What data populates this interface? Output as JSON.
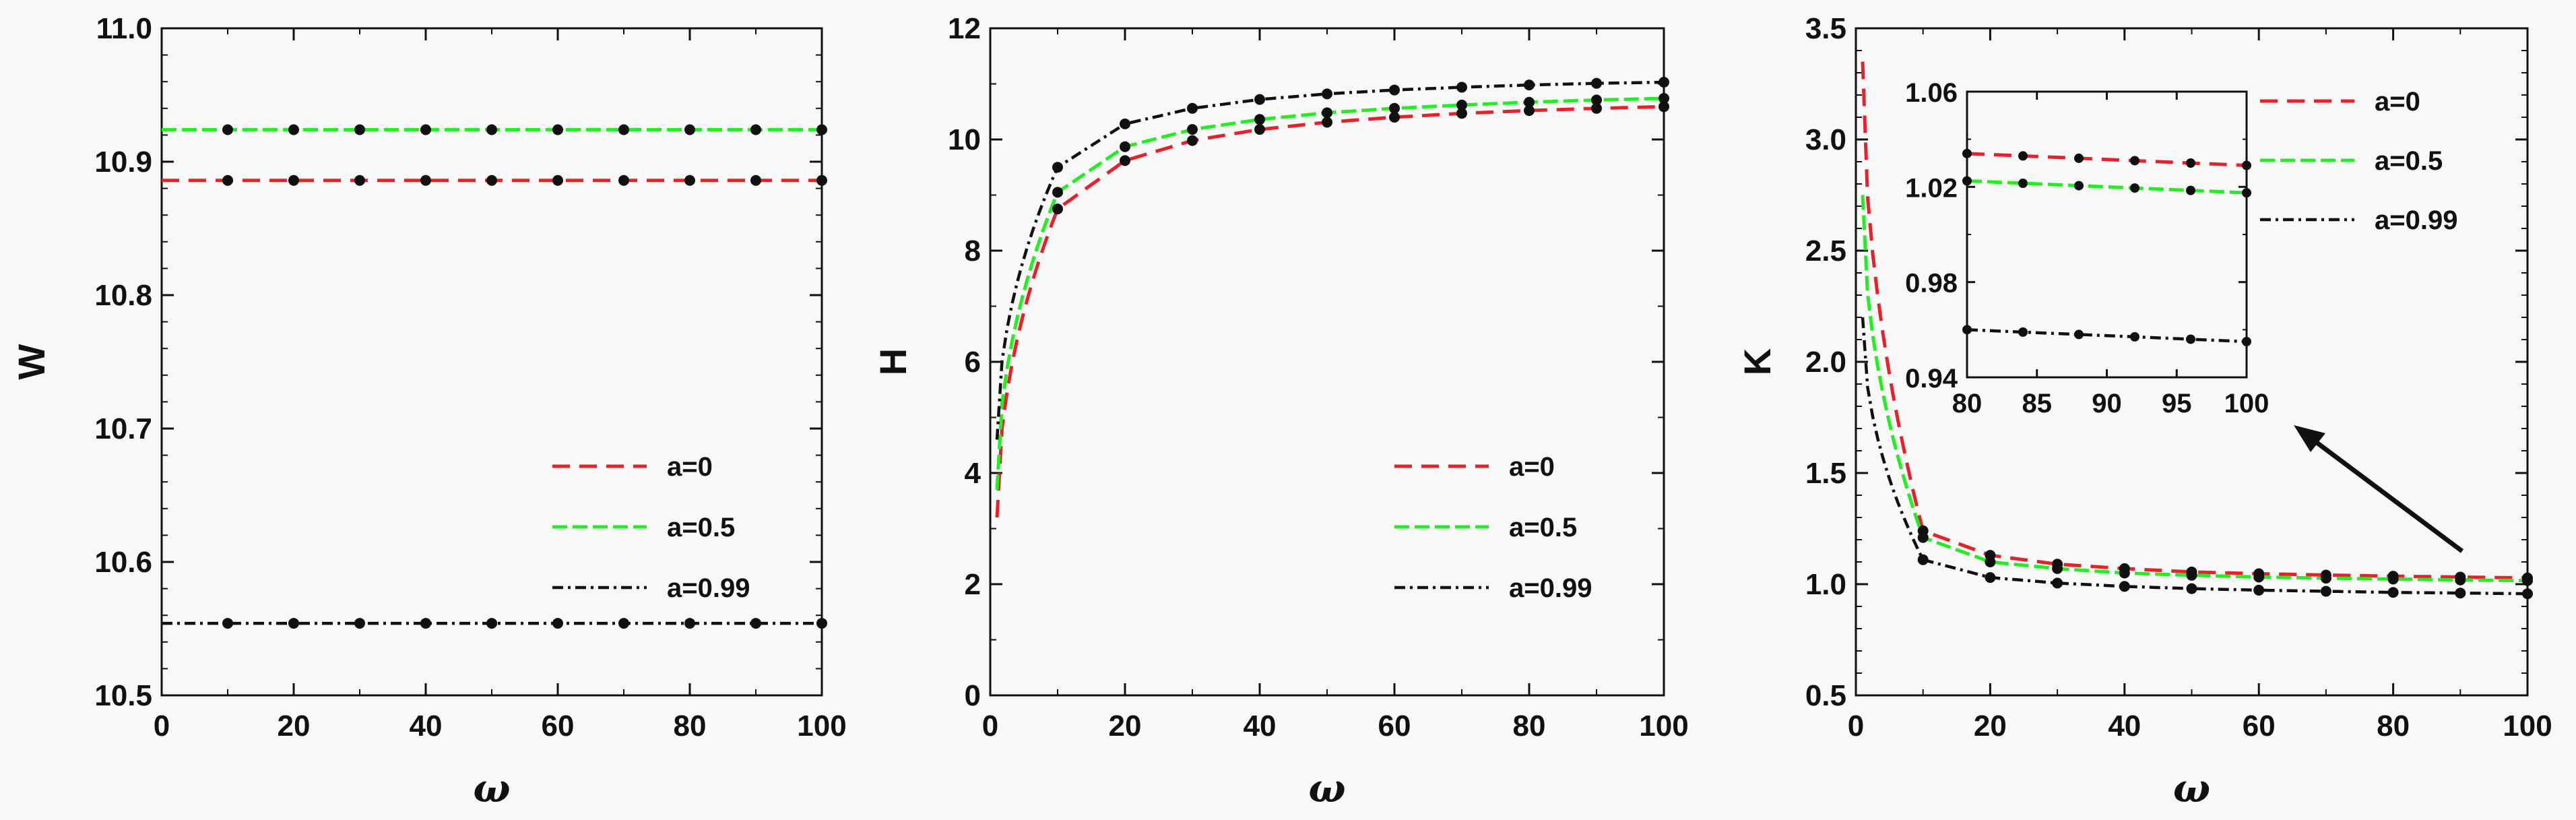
{
  "colors": {
    "a0": "#e8202a",
    "a05": "#22ee22",
    "a099": "#111111",
    "marker": "#111111"
  },
  "chart_data": [
    {
      "type": "line",
      "xlabel": "ω",
      "ylabel": "W",
      "xlim": [
        0,
        100
      ],
      "ylim": [
        10.5,
        11.0
      ],
      "xticks": [
        "0",
        "20",
        "40",
        "60",
        "80",
        "100"
      ],
      "yticks": [
        "10.5",
        "10.6",
        "10.7",
        "10.8",
        "10.9",
        "11.0"
      ],
      "legend_position": "lower-right",
      "series": [
        {
          "name": "a=0",
          "x": [
            10,
            20,
            30,
            40,
            50,
            60,
            70,
            80,
            90,
            100
          ],
          "values": [
            10.886,
            10.886,
            10.886,
            10.886,
            10.886,
            10.886,
            10.886,
            10.886,
            10.886,
            10.886
          ]
        },
        {
          "name": "a=0.5",
          "x": [
            10,
            20,
            30,
            40,
            50,
            60,
            70,
            80,
            90,
            100
          ],
          "values": [
            10.924,
            10.924,
            10.924,
            10.924,
            10.924,
            10.924,
            10.924,
            10.924,
            10.924,
            10.924
          ]
        },
        {
          "name": "a=0.99",
          "x": [
            10,
            20,
            30,
            40,
            50,
            60,
            70,
            80,
            90,
            100
          ],
          "values": [
            10.554,
            10.554,
            10.554,
            10.554,
            10.554,
            10.554,
            10.554,
            10.554,
            10.554,
            10.554
          ]
        }
      ]
    },
    {
      "type": "line",
      "xlabel": "ω",
      "ylabel": "H",
      "xlim": [
        0,
        100
      ],
      "ylim": [
        0,
        12
      ],
      "xticks": [
        "0",
        "20",
        "40",
        "60",
        "80",
        "100"
      ],
      "yticks": [
        "0",
        "2",
        "4",
        "6",
        "8",
        "10",
        "12"
      ],
      "legend_position": "lower-right",
      "series": [
        {
          "name": "a=0",
          "x": [
            1,
            10,
            20,
            30,
            40,
            50,
            60,
            70,
            80,
            90,
            100
          ],
          "values": [
            3.2,
            8.75,
            9.62,
            9.98,
            10.18,
            10.31,
            10.4,
            10.47,
            10.52,
            10.56,
            10.59
          ]
        },
        {
          "name": "a=0.5",
          "x": [
            1,
            10,
            20,
            30,
            40,
            50,
            60,
            70,
            80,
            90,
            100
          ],
          "values": [
            3.7,
            9.05,
            9.87,
            10.18,
            10.36,
            10.48,
            10.56,
            10.62,
            10.67,
            10.71,
            10.74
          ]
        },
        {
          "name": "a=0.99",
          "x": [
            1,
            10,
            20,
            30,
            40,
            50,
            60,
            70,
            80,
            90,
            100
          ],
          "values": [
            4.6,
            9.5,
            10.28,
            10.56,
            10.72,
            10.82,
            10.89,
            10.94,
            10.98,
            11.01,
            11.03
          ]
        }
      ]
    },
    {
      "type": "line",
      "xlabel": "ω",
      "ylabel": "K",
      "xlim": [
        0,
        100
      ],
      "ylim": [
        0.5,
        3.5
      ],
      "xticks": [
        "0",
        "20",
        "40",
        "60",
        "80",
        "100"
      ],
      "yticks": [
        "0.5",
        "1.0",
        "1.5",
        "2.0",
        "2.5",
        "3.0",
        "3.5"
      ],
      "legend_position": "top-right",
      "series": [
        {
          "name": "a=0",
          "x": [
            1,
            10,
            20,
            30,
            40,
            50,
            60,
            70,
            80,
            90,
            100
          ],
          "values": [
            3.35,
            1.24,
            1.13,
            1.09,
            1.07,
            1.055,
            1.047,
            1.041,
            1.036,
            1.032,
            1.028
          ]
        },
        {
          "name": "a=0.5",
          "x": [
            1,
            10,
            20,
            30,
            40,
            50,
            60,
            70,
            80,
            90,
            100
          ],
          "values": [
            2.75,
            1.21,
            1.1,
            1.07,
            1.05,
            1.04,
            1.032,
            1.027,
            1.023,
            1.019,
            1.016
          ]
        },
        {
          "name": "a=0.99",
          "x": [
            1,
            10,
            20,
            30,
            40,
            50,
            60,
            70,
            80,
            90,
            100
          ],
          "values": [
            2.2,
            1.11,
            1.03,
            1.005,
            0.99,
            0.98,
            0.973,
            0.968,
            0.963,
            0.96,
            0.957
          ]
        }
      ],
      "inset": {
        "xlim": [
          80,
          100
        ],
        "ylim": [
          0.94,
          1.06
        ],
        "xticks": [
          "80",
          "85",
          "90",
          "95",
          "100"
        ],
        "yticks": [
          "0.94",
          "0.98",
          "1.02",
          "1.06"
        ],
        "series": [
          {
            "name": "a=0",
            "x": [
              80,
              84,
              88,
              92,
              96,
              100
            ],
            "values": [
              1.034,
              1.033,
              1.032,
              1.031,
              1.03,
              1.029
            ]
          },
          {
            "name": "a=0.5",
            "x": [
              80,
              84,
              88,
              92,
              96,
              100
            ],
            "values": [
              1.0225,
              1.0215,
              1.0205,
              1.0195,
              1.0185,
              1.0175
            ]
          },
          {
            "name": "a=0.99",
            "x": [
              80,
              84,
              88,
              92,
              96,
              100
            ],
            "values": [
              0.96,
              0.959,
              0.958,
              0.957,
              0.956,
              0.955
            ]
          }
        ]
      }
    }
  ]
}
